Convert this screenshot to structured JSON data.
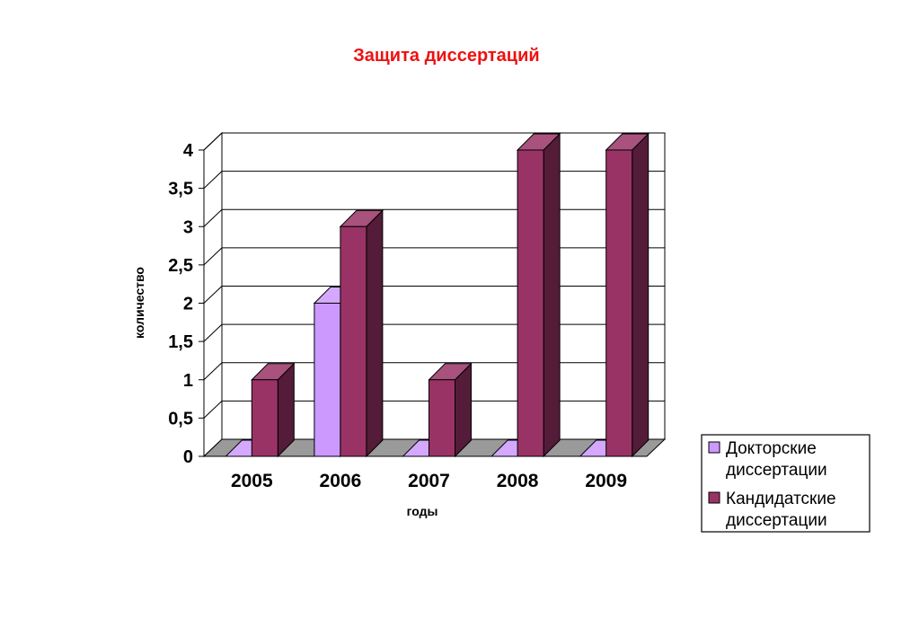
{
  "chart_data": {
    "type": "bar",
    "title": "Защита диссертаций",
    "title_color": "#ee1111",
    "xlabel": "годы",
    "ylabel": "количество",
    "categories": [
      "2005",
      "2006",
      "2007",
      "2008",
      "2009"
    ],
    "y_ticks": [
      "0",
      "0,5",
      "1",
      "1,5",
      "2",
      "2,5",
      "3",
      "3,5",
      "4"
    ],
    "ylim": [
      0,
      4
    ],
    "grid": true,
    "legend_position": "right",
    "series": [
      {
        "name": "Докторские диссертации",
        "name_lines": [
          "Докторские",
          "диссертации"
        ],
        "values": [
          0,
          2,
          0,
          0,
          0
        ],
        "color": "#cc99ff"
      },
      {
        "name": "Кандидатские диссертации",
        "name_lines": [
          "Кандидатские",
          "диссертации"
        ],
        "values": [
          1,
          3,
          1,
          4,
          4
        ],
        "color": "#993366"
      }
    ]
  }
}
